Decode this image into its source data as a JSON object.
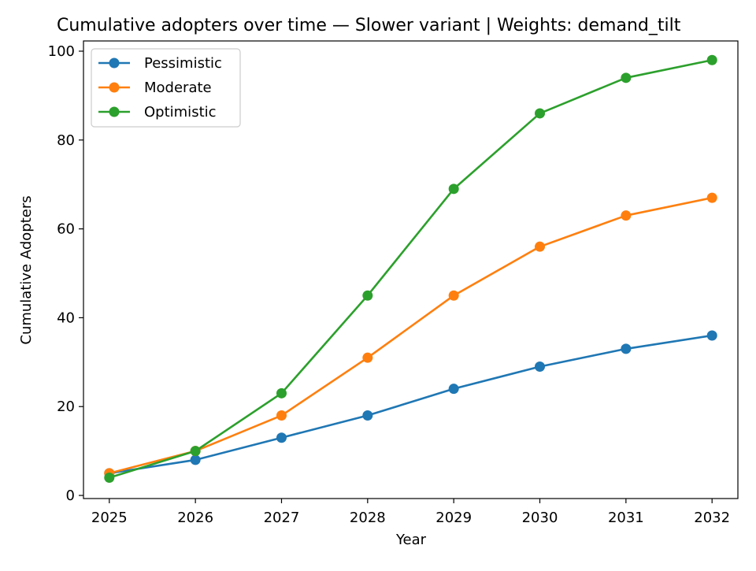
{
  "chart_data": {
    "type": "line",
    "title": "Cumulative adopters over time — Slower variant | Weights: demand_tilt",
    "xlabel": "Year",
    "ylabel": "Cumulative Adopters",
    "x": [
      2025,
      2026,
      2027,
      2028,
      2029,
      2030,
      2031,
      2032
    ],
    "xlim": [
      2024.7,
      2032.3
    ],
    "ylim": [
      -0.7,
      102.3
    ],
    "yticks": [
      0,
      20,
      40,
      60,
      80,
      100
    ],
    "grid": false,
    "legend_position": "upper-left",
    "marker": "circle",
    "series": [
      {
        "name": "Pessimistic",
        "color": "#1f77b4",
        "values": [
          5,
          8,
          13,
          18,
          24,
          29,
          33,
          36
        ]
      },
      {
        "name": "Moderate",
        "color": "#ff7f0e",
        "values": [
          5,
          10,
          18,
          31,
          45,
          56,
          63,
          67
        ]
      },
      {
        "name": "Optimistic",
        "color": "#2ca02c",
        "values": [
          4,
          10,
          23,
          45,
          69,
          86,
          94,
          98
        ]
      }
    ]
  }
}
